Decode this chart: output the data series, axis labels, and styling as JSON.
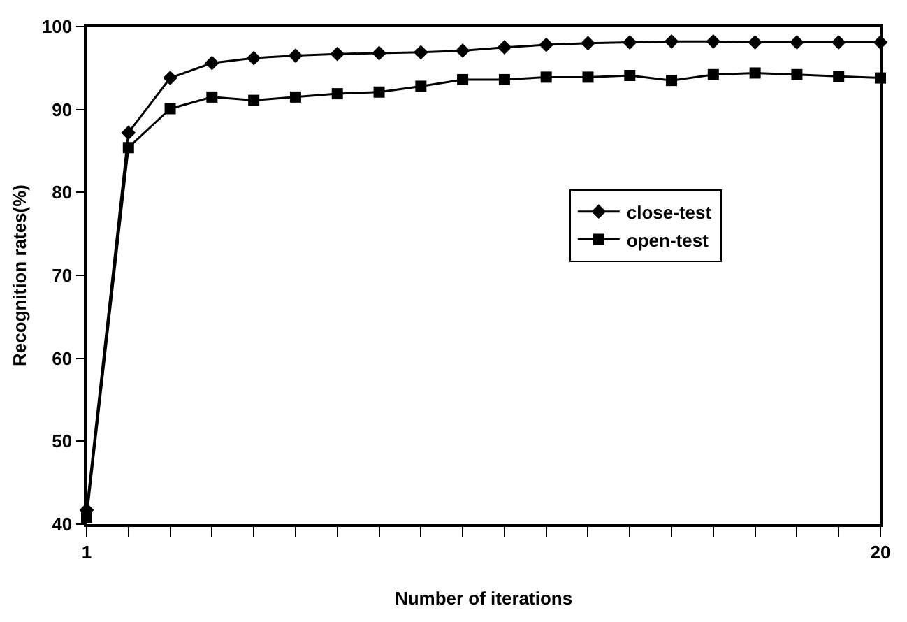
{
  "chart_data": {
    "type": "line",
    "xlabel": "Number of iterations",
    "ylabel": "Recognition rates(%)",
    "x": [
      1,
      2,
      3,
      4,
      5,
      6,
      7,
      8,
      9,
      10,
      11,
      12,
      13,
      14,
      15,
      16,
      17,
      18,
      19,
      20
    ],
    "series": [
      {
        "name": "close-test",
        "color": "#000000",
        "marker": "diamond",
        "values": [
          41.7,
          87.2,
          93.8,
          95.6,
          96.2,
          96.5,
          96.7,
          96.8,
          96.9,
          97.1,
          97.5,
          97.8,
          98.0,
          98.1,
          98.2,
          98.2,
          98.1,
          98.1,
          98.1,
          98.1
        ]
      },
      {
        "name": "open-test",
        "color": "#000000",
        "marker": "square",
        "values": [
          40.8,
          85.4,
          90.1,
          91.5,
          91.1,
          91.5,
          91.9,
          92.1,
          92.8,
          93.6,
          93.6,
          93.9,
          93.9,
          94.1,
          93.5,
          94.2,
          94.4,
          94.2,
          94.0,
          93.8
        ]
      }
    ],
    "xlim": [
      1,
      20
    ],
    "xticks": [
      1,
      {
        "value": 2,
        "label": null
      },
      {
        "value": 3,
        "label": null
      },
      {
        "value": 4,
        "label": null
      },
      {
        "value": 5,
        "label": null
      },
      {
        "value": 6,
        "label": null
      },
      {
        "value": 7,
        "label": null
      },
      {
        "value": 8,
        "label": null
      },
      {
        "value": 9,
        "label": null
      },
      {
        "value": 10,
        "label": null
      },
      {
        "value": 11,
        "label": null
      },
      {
        "value": 12,
        "label": null
      },
      {
        "value": 13,
        "label": null
      },
      {
        "value": 14,
        "label": null
      },
      {
        "value": 15,
        "label": null
      },
      {
        "value": 16,
        "label": null
      },
      {
        "value": 17,
        "label": null
      },
      {
        "value": 18,
        "label": null
      },
      {
        "value": 19,
        "label": null
      },
      20
    ],
    "ylim": [
      40,
      100
    ],
    "yticks": [
      40,
      50,
      60,
      70,
      80,
      90,
      100
    ],
    "legend": "right",
    "line_style": "solid"
  }
}
